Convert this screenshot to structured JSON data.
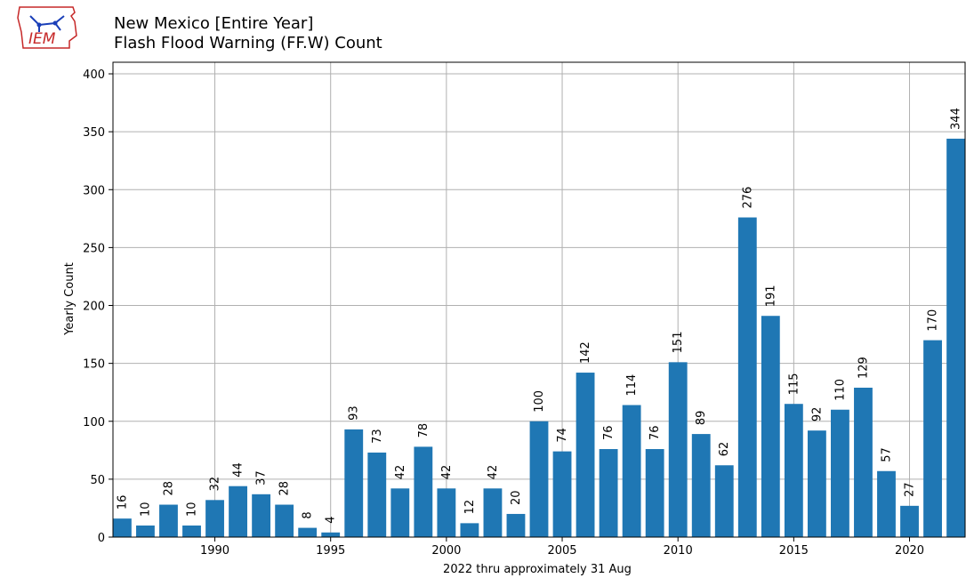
{
  "header": {
    "title_line1": "New Mexico [Entire Year]",
    "title_line2": "Flash Flood Warning (FF.W) Count",
    "logo_text": "IEM"
  },
  "chart_data": {
    "type": "bar",
    "title": "New Mexico [Entire Year]\nFlash Flood Warning (FF.W) Count",
    "xlabel": "2022 thru approximately 31 Aug",
    "ylabel": "Yearly Count",
    "categories": [
      1986,
      1987,
      1988,
      1989,
      1990,
      1991,
      1992,
      1993,
      1994,
      1995,
      1996,
      1997,
      1998,
      1999,
      2000,
      2001,
      2002,
      2003,
      2004,
      2005,
      2006,
      2007,
      2008,
      2009,
      2010,
      2011,
      2012,
      2013,
      2014,
      2015,
      2016,
      2017,
      2018,
      2019,
      2020,
      2021,
      2022
    ],
    "values": [
      16,
      10,
      28,
      10,
      32,
      44,
      37,
      28,
      8,
      4,
      93,
      73,
      42,
      78,
      42,
      12,
      42,
      20,
      100,
      74,
      142,
      76,
      114,
      76,
      151,
      89,
      62,
      276,
      191,
      115,
      92,
      110,
      129,
      57,
      27,
      170,
      344
    ],
    "xlim": [
      1985.6,
      2022.4
    ],
    "ylim": [
      0,
      410
    ],
    "xticks": [
      1990,
      1995,
      2000,
      2005,
      2010,
      2015,
      2020
    ],
    "yticks": [
      0,
      50,
      100,
      150,
      200,
      250,
      300,
      350,
      400
    ],
    "grid": true,
    "bar_color": "#1f77b4"
  }
}
